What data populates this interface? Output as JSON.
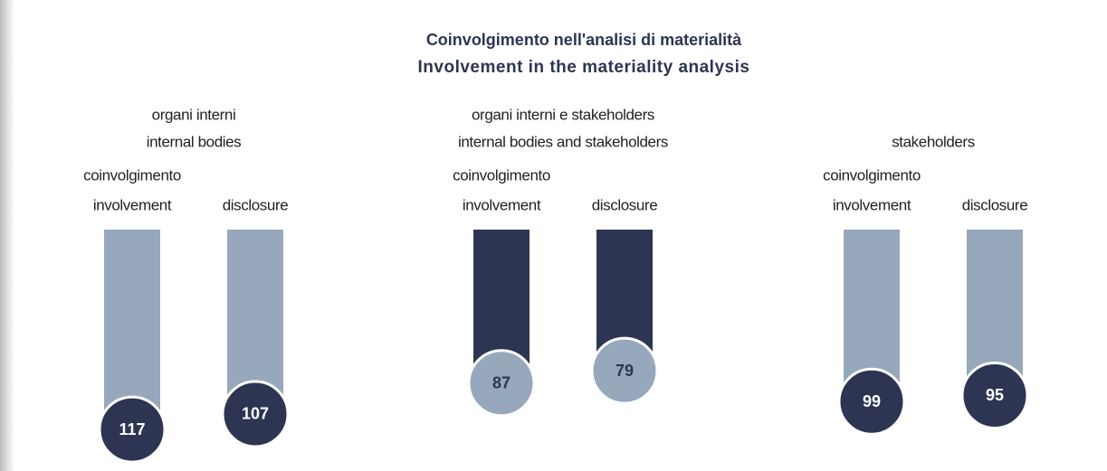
{
  "chart_data": {
    "type": "lollipop",
    "title": "Coinvolgimento nell'analisi di materialità",
    "subtitle": "Involvement in the materiality analysis",
    "groups": [
      {
        "name": [
          "organi interni",
          "internal bodies"
        ],
        "color": "#97a8bc",
        "circle_color": "#2d3552",
        "text_color": "#ffffff",
        "bars": [
          {
            "label": [
              "coinvolgimento",
              "involvement"
            ],
            "value": 117
          },
          {
            "label": [
              "disclosure"
            ],
            "value": 107
          }
        ]
      },
      {
        "name": [
          "organi interni e stakeholders",
          "internal bodies and stakeholders"
        ],
        "color": "#2d3552",
        "circle_color": "#97a8bc",
        "text_color": "#2d3552",
        "bars": [
          {
            "label": [
              "coinvolgimento",
              "involvement"
            ],
            "value": 87
          },
          {
            "label": [
              "disclosure"
            ],
            "value": 79
          }
        ]
      },
      {
        "name": [
          "stakeholders"
        ],
        "color": "#97a8bc",
        "circle_color": "#2d3552",
        "text_color": "#ffffff",
        "bars": [
          {
            "label": [
              "coinvolgimento",
              "involvement"
            ],
            "value": 99
          },
          {
            "label": [
              "disclosure"
            ],
            "value": 95
          }
        ]
      }
    ]
  }
}
